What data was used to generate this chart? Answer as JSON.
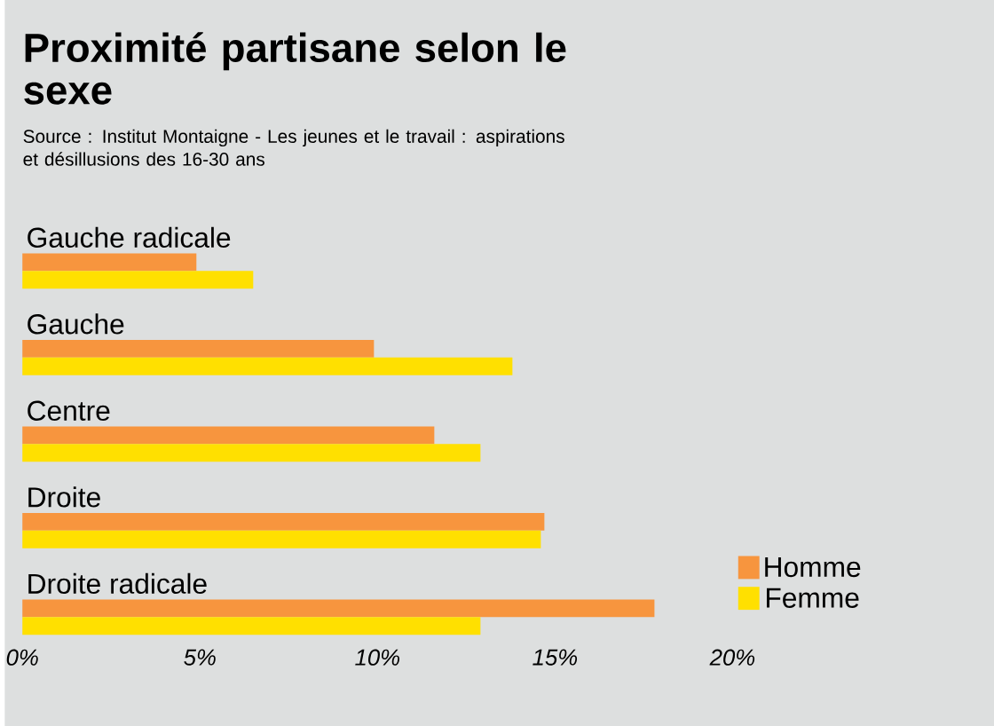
{
  "chart_data": {
    "type": "bar",
    "orientation": "horizontal",
    "title": "Proximité partisane selon le sexe",
    "annotations": [
      "Source : Institut Montaigne - Les jeunes et le travail : aspirations et désillusions des 16-30 ans"
    ],
    "categories": [
      "Gauche radicale",
      "Gauche",
      "Centre",
      "Droite",
      "Droite radicale"
    ],
    "series": [
      {
        "name": "Homme",
        "color": "#f7953e",
        "values": [
          4.9,
          9.9,
          11.6,
          14.7,
          17.8
        ]
      },
      {
        "name": "Femme",
        "color": "#ffe000",
        "values": [
          6.5,
          13.8,
          12.9,
          14.6,
          12.9
        ]
      }
    ],
    "xlim": [
      0,
      20
    ],
    "xticks": [
      {
        "value": 0,
        "label": "0%"
      },
      {
        "value": 5,
        "label": "5%"
      },
      {
        "value": 10,
        "label": "10%"
      },
      {
        "value": 15,
        "label": "15%"
      },
      {
        "value": 20,
        "label": "20%"
      }
    ],
    "grid": false,
    "legend": "bottom right"
  }
}
